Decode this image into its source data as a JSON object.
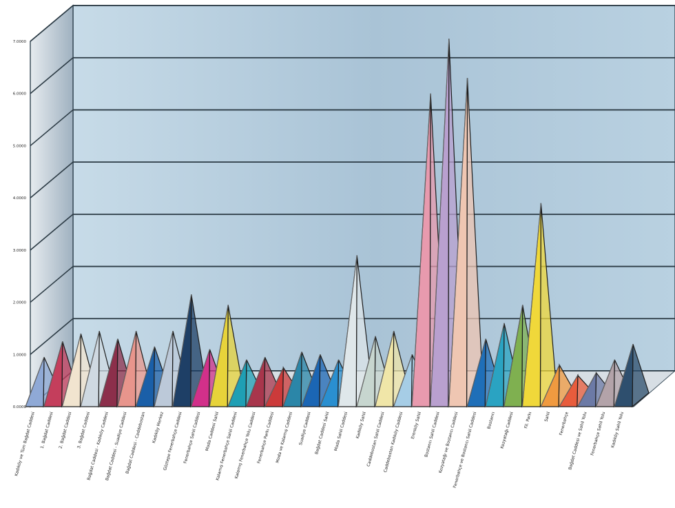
{
  "chart_data": {
    "type": "area",
    "style": "3d-pyramid",
    "title": "",
    "xlabel": "",
    "ylabel": "",
    "ylim": [
      0,
      7
    ],
    "y_tick_labels": [
      "0.0000",
      "1.0000",
      "2.0000",
      "3.0000",
      "4.0000",
      "5.0000",
      "6.0000",
      "7.0000"
    ],
    "grid": true,
    "colors": [
      "#8fa9d6",
      "#c43e5c",
      "#f1e4cf",
      "#cfd9e2",
      "#8c2f4b",
      "#e8958c",
      "#1a5fa8",
      "#bcc9d9",
      "#1e3f66",
      "#d2308a",
      "#e7d33a",
      "#1f9fb4",
      "#a8364c",
      "#cc3a3a",
      "#2b86a8",
      "#1b66b4",
      "#2a8fd0",
      "#dfe7ea",
      "#c7d6cf",
      "#f0e6a8",
      "#a6cde6",
      "#e89aae",
      "#b9a0cf",
      "#efc6b2",
      "#1f6fb8",
      "#2aa3c2",
      "#7fb050",
      "#f0d83a",
      "#f09a40",
      "#e85c3c",
      "#6c7aa6",
      "#b3a3a9",
      "#2e4f6e"
    ],
    "categories": [
      "Kadıköy ve Tüm Bağdat Caddesi",
      "1. Bağdat Caddesi",
      "2. Bağdat Caddesi",
      "3. Bağdat Caddesi",
      "Bağdat Caddesi - Kadıköy Caddesi",
      "Bağdat Caddesi - Suadiye Caddesi",
      "Bağdat Caddesi - Caddebostan",
      "Kadıköy Merkez",
      "Göztepe Fenerbahçe Caddesi",
      "Fenerbahçe Sahil Caddesi",
      "Moda Caddesi Sahil",
      "Kalamış Fenerbahçe Sahil Caddesi",
      "Kalamış Fenerbahçe Yolu Caddesi",
      "Fenerbahçe Parkı Caddesi",
      "Moda ve Kalamış Caddesi",
      "Suadiye Caddesi",
      "Bağdat Caddesi Sahil",
      "Moda Sahil Caddesi",
      "Kadıköy Sahil",
      "Caddebostan Sahil Caddesi",
      "Caddebostan Kadıköy Caddesi",
      "Erenköy Sahil",
      "Bostancı Sahil Caddesi",
      "Kozyatağı ve Bostancı Caddesi",
      "Fenerbahçe ve Bostancı Sahil Caddesi",
      "Bostancı",
      "Kozyatağı Caddesi",
      "Fil. Parkı",
      "Sahil",
      "Fenerbahçe",
      "Bağdat Caddesi ve Sahil Yolu",
      "Fenerbahçe Sahil Yolu",
      "Kadıköy Sahil Yolu"
    ],
    "values": [
      0.95,
      1.25,
      1.4,
      1.45,
      1.3,
      1.45,
      1.15,
      1.45,
      2.15,
      1.1,
      1.95,
      0.9,
      0.95,
      0.75,
      1.05,
      1.0,
      0.9,
      2.9,
      1.35,
      1.45,
      1.0,
      6.0,
      7.05,
      6.3,
      1.3,
      1.6,
      1.95,
      3.9,
      0.8,
      0.6,
      0.65,
      0.9,
      1.2
    ]
  }
}
